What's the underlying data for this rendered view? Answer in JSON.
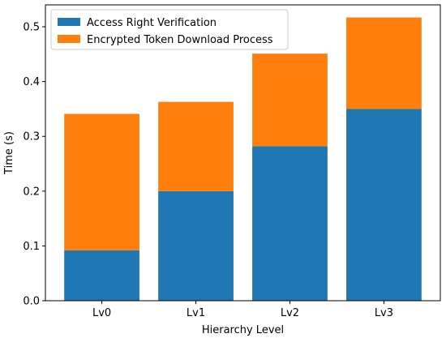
{
  "chart_data": {
    "type": "bar",
    "stacked": true,
    "title": "",
    "xlabel": "Hierarchy Level",
    "ylabel": "Time (s)",
    "categories": [
      "Lv0",
      "Lv1",
      "Lv2",
      "Lv3"
    ],
    "series": [
      {
        "name": "Access Right Verification",
        "color": "#1f77b4",
        "values": [
          0.092,
          0.2,
          0.282,
          0.35
        ]
      },
      {
        "name": "Encrypted Token Download Process",
        "color": "#ff7f0e",
        "values": [
          0.249,
          0.163,
          0.169,
          0.167
        ]
      }
    ],
    "ylim": [
      0,
      0.54
    ],
    "yticks": [
      "0.0",
      "0.1",
      "0.2",
      "0.3",
      "0.4",
      "0.5"
    ],
    "grid": false,
    "legend_position": "top-left"
  }
}
